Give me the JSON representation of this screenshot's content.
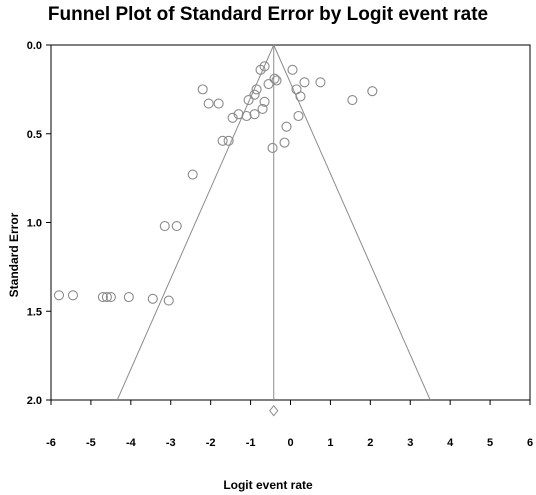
{
  "chart_data": {
    "type": "scatter",
    "title": "Funnel Plot of Standard Error by Logit event rate",
    "xlabel": "Logit event rate",
    "ylabel": "Standard Error",
    "xlim": [
      -6,
      6
    ],
    "ylim": [
      0.0,
      2.0
    ],
    "y_inverted": true,
    "x_ticks": [
      "-6",
      "-5",
      "-4",
      "-3",
      "-2",
      "-1",
      "0",
      "1",
      "2",
      "3",
      "4",
      "5",
      "6"
    ],
    "y_ticks": [
      "0.0",
      "0.5",
      "1.0",
      "1.5",
      "2.0"
    ],
    "grid": false,
    "summary_estimate": -0.42,
    "funnel_lines": [
      {
        "x": [
          -0.42,
          -4.34
        ],
        "y": [
          0.0,
          2.0
        ]
      },
      {
        "x": [
          -0.42,
          3.5
        ],
        "y": [
          0.0,
          2.0
        ]
      }
    ],
    "summary_diamond": {
      "x": -0.42,
      "y": 2.06
    },
    "points": [
      {
        "x": -5.8,
        "y": 1.41
      },
      {
        "x": -5.45,
        "y": 1.41
      },
      {
        "x": -4.7,
        "y": 1.42
      },
      {
        "x": -4.6,
        "y": 1.42
      },
      {
        "x": -4.5,
        "y": 1.42
      },
      {
        "x": -4.05,
        "y": 1.42
      },
      {
        "x": -3.45,
        "y": 1.43
      },
      {
        "x": -3.05,
        "y": 1.44
      },
      {
        "x": -3.15,
        "y": 1.02
      },
      {
        "x": -2.85,
        "y": 1.02
      },
      {
        "x": -2.45,
        "y": 0.73
      },
      {
        "x": -2.2,
        "y": 0.25
      },
      {
        "x": -2.05,
        "y": 0.33
      },
      {
        "x": -1.8,
        "y": 0.33
      },
      {
        "x": -1.7,
        "y": 0.54
      },
      {
        "x": -1.55,
        "y": 0.54
      },
      {
        "x": -1.45,
        "y": 0.41
      },
      {
        "x": -1.3,
        "y": 0.39
      },
      {
        "x": -1.1,
        "y": 0.4
      },
      {
        "x": -1.05,
        "y": 0.31
      },
      {
        "x": -0.9,
        "y": 0.28
      },
      {
        "x": -0.9,
        "y": 0.39
      },
      {
        "x": -0.85,
        "y": 0.25
      },
      {
        "x": -0.75,
        "y": 0.14
      },
      {
        "x": -0.65,
        "y": 0.12
      },
      {
        "x": -0.7,
        "y": 0.36
      },
      {
        "x": -0.65,
        "y": 0.32
      },
      {
        "x": -0.55,
        "y": 0.22
      },
      {
        "x": -0.45,
        "y": 0.58
      },
      {
        "x": -0.4,
        "y": 0.19
      },
      {
        "x": -0.35,
        "y": 0.2
      },
      {
        "x": -0.15,
        "y": 0.55
      },
      {
        "x": -0.1,
        "y": 0.46
      },
      {
        "x": 0.05,
        "y": 0.14
      },
      {
        "x": 0.15,
        "y": 0.25
      },
      {
        "x": 0.2,
        "y": 0.4
      },
      {
        "x": 0.25,
        "y": 0.29
      },
      {
        "x": 0.35,
        "y": 0.21
      },
      {
        "x": 0.75,
        "y": 0.21
      },
      {
        "x": 1.55,
        "y": 0.31
      },
      {
        "x": 2.05,
        "y": 0.26
      }
    ]
  }
}
